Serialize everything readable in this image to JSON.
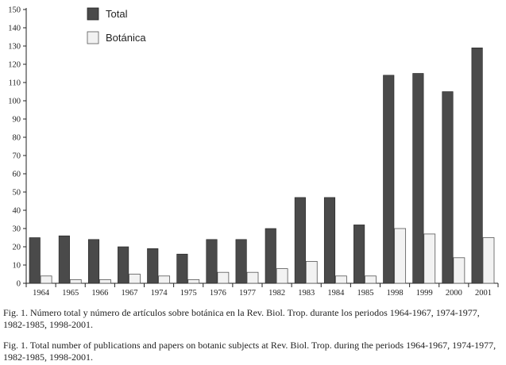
{
  "chart_data": {
    "type": "bar",
    "categories": [
      "1964",
      "1965",
      "1966",
      "1967",
      "1974",
      "1975",
      "1976",
      "1977",
      "1982",
      "1983",
      "1984",
      "1985",
      "1998",
      "1999",
      "2000",
      "2001"
    ],
    "series": [
      {
        "name": "Total",
        "values": [
          25,
          26,
          24,
          20,
          19,
          16,
          24,
          24,
          30,
          47,
          47,
          32,
          114,
          115,
          105,
          129
        ],
        "color": "#4a4a4a"
      },
      {
        "name": "Botánica",
        "values": [
          4,
          2,
          2,
          5,
          4,
          2,
          6,
          6,
          8,
          12,
          4,
          4,
          30,
          27,
          14,
          25
        ],
        "color": "#f2f2f2"
      }
    ],
    "yticks": [
      0,
      10,
      20,
      30,
      40,
      50,
      60,
      70,
      80,
      90,
      100,
      110,
      120,
      130,
      140,
      150
    ],
    "ylim": [
      0,
      150
    ],
    "legend_position": "top-left"
  },
  "captions": {
    "es": "Fig. 1. Número total y número de artículos sobre botánica en la Rev. Biol. Trop. durante los periodos 1964-1967, 1974-1977, 1982-1985, 1998-2001.",
    "en": "Fig. 1. Total number of publications and papers on botanic subjects at Rev. Biol. Trop. during the periods 1964-1967, 1974-1977, 1982-1985, 1998-2001."
  }
}
